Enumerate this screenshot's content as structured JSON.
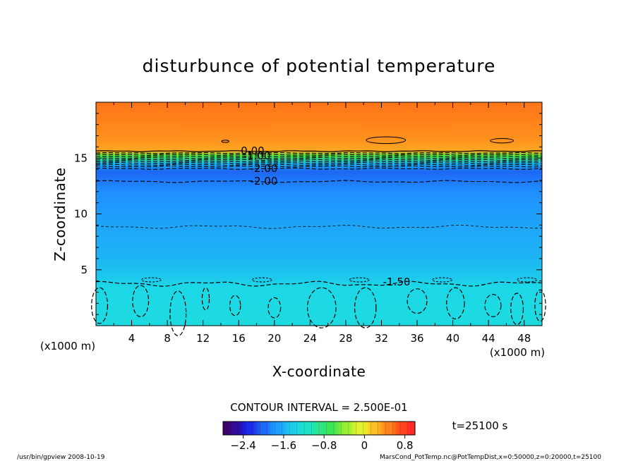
{
  "chart_data": {
    "type": "heatmap",
    "title": "disturbunce of potential temperature",
    "xlabel": "X-coordinate",
    "ylabel": "Z-coordinate",
    "x_unit": "(x1000 m)",
    "y_unit": "(x1000 m)",
    "xlim": [
      0,
      50
    ],
    "ylim": [
      0,
      20
    ],
    "x_ticks": [
      4,
      8,
      12,
      16,
      20,
      24,
      28,
      32,
      36,
      40,
      44,
      48
    ],
    "y_ticks": [
      5,
      10,
      15
    ],
    "contour_interval_text": "CONTOUR INTERVAL = 2.500E-01",
    "time_text": "t=25100 s",
    "colorbar": {
      "ticks": [
        "−2.4",
        "−1.6",
        "−0.8",
        "0",
        "0.8"
      ],
      "min": -2.8,
      "max": 1.0
    },
    "contour_labels": [
      "0.00",
      "-1.00",
      "-2.00",
      "-2.00",
      "-1.50"
    ],
    "profile": [
      {
        "z": 0,
        "value": -1.3
      },
      {
        "z": 3.5,
        "value": -1.35
      },
      {
        "z": 4.2,
        "value": -1.45
      },
      {
        "z": 6,
        "value": -1.6
      },
      {
        "z": 9,
        "value": -1.7
      },
      {
        "z": 12,
        "value": -1.85
      },
      {
        "z": 13.8,
        "value": -2.05
      },
      {
        "z": 14.5,
        "value": -1.6
      },
      {
        "z": 15.2,
        "value": -0.6
      },
      {
        "z": 15.6,
        "value": 0.35
      },
      {
        "z": 16.5,
        "value": 0.45
      },
      {
        "z": 18.5,
        "value": 0.55
      },
      {
        "z": 20,
        "value": 0.6
      }
    ]
  },
  "footer": {
    "left": "/usr/bin/gpview   2008-10-19",
    "right": "MarsCond_PotTemp.nc@PotTempDist,x=0:50000,z=0:20000,t=25100"
  }
}
